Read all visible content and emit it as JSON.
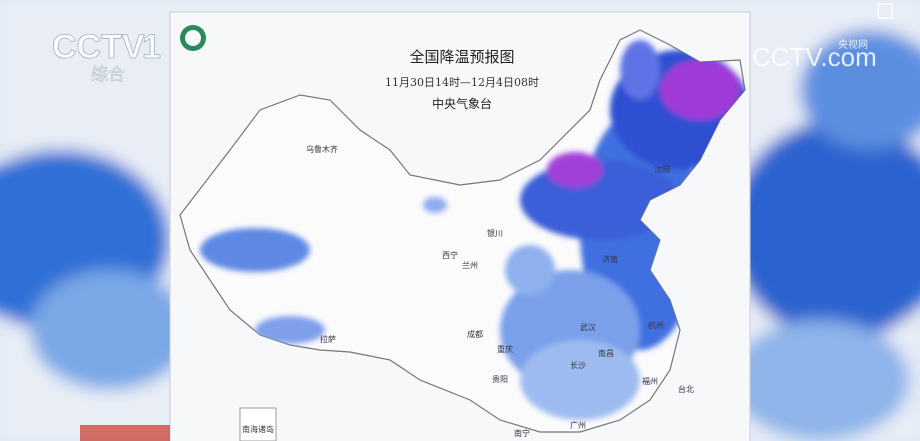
{
  "header": {
    "title": "全国降温预报图",
    "period": "11月30日14时—12月4日08时",
    "source": "中央气象台"
  },
  "channel": {
    "logo": "CCTV",
    "number": "1",
    "name": "综合"
  },
  "watermark": {
    "logo": "CCTV.com",
    "name": "央视网"
  },
  "inset": {
    "label": "南海诸岛"
  },
  "cities": [
    {
      "label": "乌鲁木齐"
    },
    {
      "label": "拉萨"
    },
    {
      "label": "西宁"
    },
    {
      "label": "兰州"
    },
    {
      "label": "银川"
    },
    {
      "label": "成都"
    },
    {
      "label": "重庆"
    },
    {
      "label": "贵阳"
    },
    {
      "label": "武汉"
    },
    {
      "label": "长沙"
    },
    {
      "label": "南昌"
    },
    {
      "label": "杭州"
    },
    {
      "label": "福州"
    },
    {
      "label": "台北"
    },
    {
      "label": "南宁"
    },
    {
      "label": "广州"
    },
    {
      "label": "济南"
    },
    {
      "label": "沈阳"
    }
  ]
}
